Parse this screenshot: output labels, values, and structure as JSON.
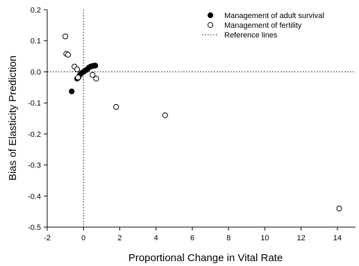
{
  "chart_data": {
    "type": "scatter",
    "xlabel": "Proportional Change in Vital Rate",
    "ylabel": "Bias of Elasticity Prediction",
    "xlim": [
      -2,
      15
    ],
    "ylim": [
      -0.5,
      0.2
    ],
    "x_ticks": [
      -2,
      0,
      2,
      4,
      6,
      8,
      10,
      12,
      14
    ],
    "y_ticks": [
      -0.5,
      -0.4,
      -0.3,
      -0.2,
      -0.1,
      0.0,
      0.1,
      0.2
    ],
    "x_tick_labels": [
      "-2",
      "0",
      "2",
      "4",
      "6",
      "8",
      "10",
      "12",
      "14"
    ],
    "y_tick_labels": [
      "-0.5",
      "-0.4",
      "-0.3",
      "-0.2",
      "-0.1",
      "0.0",
      "0.1",
      "0.2"
    ],
    "grid": false,
    "legend_position": "top-right",
    "reference_lines": {
      "x": 0,
      "y": 0
    },
    "series": [
      {
        "name": "Management of adult survival",
        "marker": "filled-circle",
        "color": "#000000",
        "points": [
          [
            -0.65,
            -0.063
          ],
          [
            -0.35,
            -0.022
          ],
          [
            -0.28,
            -0.018
          ],
          [
            -0.2,
            -0.01
          ],
          [
            -0.1,
            -0.004
          ],
          [
            0.0,
            0.0
          ],
          [
            0.1,
            0.004
          ],
          [
            0.2,
            0.008
          ],
          [
            0.3,
            0.014
          ],
          [
            0.4,
            0.017
          ],
          [
            0.5,
            0.019
          ],
          [
            0.6,
            0.02
          ],
          [
            0.65,
            0.02
          ]
        ]
      },
      {
        "name": "Management of fertility",
        "marker": "open-circle",
        "color": "#000000",
        "points": [
          [
            -1.0,
            0.114
          ],
          [
            -0.95,
            0.058
          ],
          [
            -0.85,
            0.055
          ],
          [
            -0.5,
            0.017
          ],
          [
            -0.35,
            0.008
          ],
          [
            -0.3,
            -0.018
          ],
          [
            0.5,
            -0.01
          ],
          [
            0.7,
            -0.022
          ],
          [
            1.8,
            -0.113
          ],
          [
            4.5,
            -0.14
          ],
          [
            14.1,
            -0.44
          ]
        ]
      }
    ],
    "legend": [
      {
        "label": "Management of adult survival",
        "marker": "filled-circle"
      },
      {
        "label": "Management of fertility",
        "marker": "open-circle"
      },
      {
        "label": "Reference lines",
        "marker": "dotted-line"
      }
    ]
  }
}
